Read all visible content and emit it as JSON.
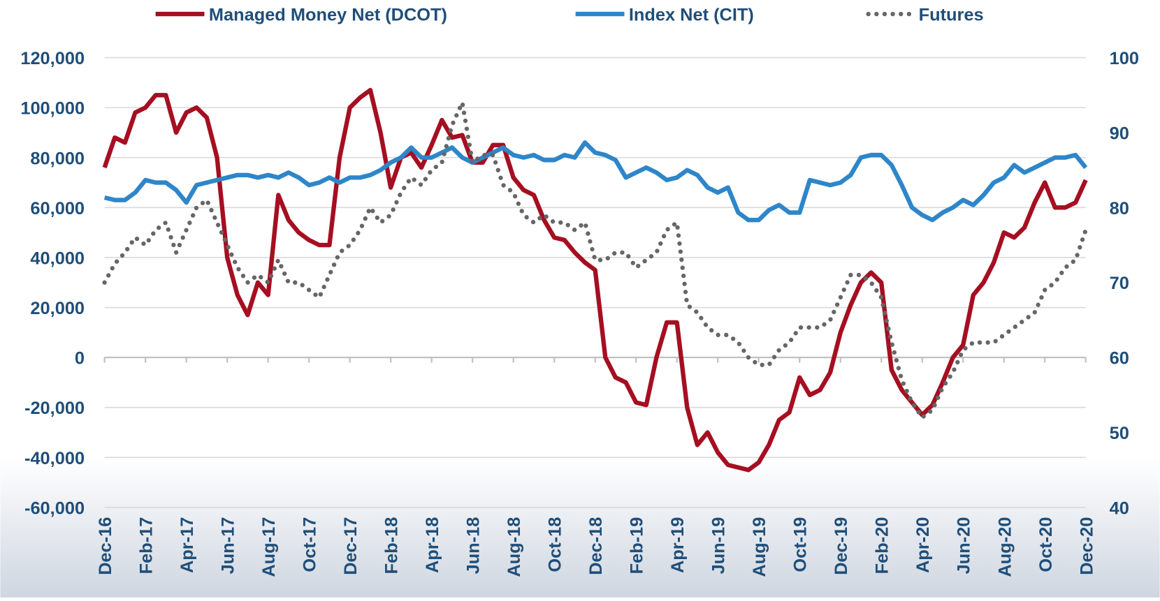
{
  "chart_data": {
    "type": "line",
    "categories": [
      "Dec-16",
      null,
      null,
      null,
      "Feb-17",
      null,
      null,
      null,
      "Apr-17",
      null,
      null,
      null,
      "Jun-17",
      null,
      null,
      null,
      "Aug-17",
      null,
      null,
      null,
      "Oct-17",
      null,
      null,
      null,
      "Dec-17",
      null,
      null,
      null,
      "Feb-18",
      null,
      null,
      null,
      "Apr-18",
      null,
      null,
      null,
      "Jun-18",
      null,
      null,
      null,
      "Aug-18",
      null,
      null,
      null,
      "Oct-18",
      null,
      null,
      null,
      "Dec-18",
      null,
      null,
      null,
      "Feb-19",
      null,
      null,
      null,
      "Apr-19",
      null,
      null,
      null,
      "Jun-19",
      null,
      null,
      null,
      "Aug-19",
      null,
      null,
      null,
      "Oct-19",
      null,
      null,
      null,
      "Dec-19",
      null,
      null,
      null,
      "Feb-20",
      null,
      null,
      null,
      "Apr-20",
      null,
      null,
      null,
      "Jun-20",
      null,
      null,
      null,
      "Aug-20",
      null,
      null,
      null,
      "Oct-20",
      null,
      null,
      null,
      "Dec-20"
    ],
    "series": [
      {
        "name": "Managed Money Net (DCOT)",
        "color": "#a50f21",
        "style": "solid",
        "values": [
          76000,
          88000,
          86000,
          98000,
          100000,
          105000,
          105000,
          90000,
          98000,
          100000,
          96000,
          80000,
          40000,
          25000,
          17000,
          30000,
          25000,
          65000,
          55000,
          50000,
          47000,
          45000,
          45000,
          80000,
          100000,
          104000,
          107000,
          90000,
          68000,
          80000,
          82000,
          76000,
          85000,
          95000,
          88000,
          89000,
          78000,
          78000,
          85000,
          85000,
          72000,
          67000,
          65000,
          55000,
          48000,
          47000,
          42000,
          38000,
          35000,
          0,
          -8000,
          -10000,
          -18000,
          -19000,
          0,
          14000,
          14000,
          -20000,
          -35000,
          -30000,
          -38000,
          -43000,
          -44000,
          -45000,
          -42000,
          -35000,
          -25000,
          -22000,
          -8000,
          -15000,
          -13000,
          -6000,
          10000,
          21000,
          30000,
          34000,
          30000,
          -5000,
          -13000,
          -18000,
          -23000,
          -19000,
          -10000,
          0,
          5000,
          25000,
          30000,
          38000,
          50000,
          48000,
          52000,
          62000,
          70000,
          60000,
          60000,
          62000,
          71000
        ]
      },
      {
        "name": "Index Net (CIT)",
        "color": "#2e86c9",
        "style": "solid",
        "values": [
          64000,
          63000,
          63000,
          66000,
          71000,
          70000,
          70000,
          67000,
          62000,
          69000,
          70000,
          71000,
          72000,
          73000,
          73000,
          72000,
          73000,
          72000,
          74000,
          72000,
          69000,
          70000,
          72000,
          70000,
          72000,
          72000,
          73000,
          75000,
          78000,
          80000,
          84000,
          80000,
          80000,
          82000,
          84000,
          80000,
          78000,
          80000,
          82000,
          84000,
          81000,
          80000,
          81000,
          79000,
          79000,
          81000,
          80000,
          86000,
          82000,
          81000,
          79000,
          72000,
          74000,
          76000,
          74000,
          71000,
          72000,
          75000,
          73000,
          68000,
          66000,
          68000,
          58000,
          55000,
          55000,
          59000,
          61000,
          58000,
          58000,
          71000,
          70000,
          69000,
          70000,
          73000,
          80000,
          81000,
          81000,
          77000,
          69000,
          60000,
          57000,
          55000,
          58000,
          60000,
          63000,
          61000,
          65000,
          70000,
          72000,
          77000,
          74000,
          76000,
          78000,
          80000,
          80000,
          81000,
          76000
        ]
      },
      {
        "name": "Futures",
        "color": "#666666",
        "style": "dotted",
        "axis": "y2",
        "values": [
          70,
          72.5,
          74,
          76,
          75,
          77,
          78,
          74,
          77,
          80,
          81,
          78,
          75,
          72,
          70,
          71,
          70,
          73,
          70,
          70,
          69,
          68,
          71,
          74,
          75,
          77,
          80,
          78,
          79,
          82,
          84,
          83,
          85,
          86,
          91,
          94,
          86,
          87,
          87,
          83,
          82,
          79,
          78,
          79,
          78,
          78,
          77,
          78,
          73,
          73,
          74,
          74,
          72,
          73,
          74,
          77,
          78,
          67,
          66,
          64,
          63,
          63,
          62,
          60,
          59,
          59,
          61,
          62,
          64,
          64,
          64,
          65,
          68,
          71,
          71,
          70,
          68,
          62,
          57,
          54,
          52,
          53,
          56,
          58,
          61,
          62,
          62,
          62,
          63,
          64,
          65,
          66,
          69,
          70,
          72,
          73,
          77
        ]
      }
    ],
    "ylim": [
      -60000,
      120000
    ],
    "yticks": [
      {
        "value": -60000,
        "label": "-60,000"
      },
      {
        "value": -40000,
        "label": "-40,000"
      },
      {
        "value": -20000,
        "label": "-20,000"
      },
      0,
      {
        "value": 20000,
        "label": "20,000"
      },
      {
        "value": 40000,
        "label": "40,000"
      },
      {
        "value": 60000,
        "label": "60,000"
      },
      {
        "value": 80000,
        "label": "80,000"
      },
      {
        "value": 100000,
        "label": "100,000"
      },
      {
        "value": 120000,
        "label": "120,000"
      }
    ],
    "y2lim": [
      40,
      100
    ],
    "y2ticks": [
      40,
      50,
      60,
      70,
      80,
      90,
      100
    ],
    "grid": true
  }
}
